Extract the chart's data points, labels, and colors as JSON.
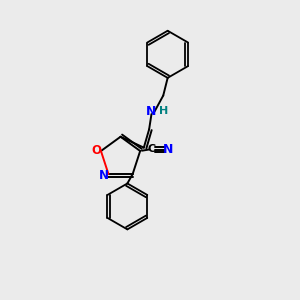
{
  "background_color": "#ebebeb",
  "bond_color": "#000000",
  "N_color": "#0000ff",
  "O_color": "#ff0000",
  "H_color": "#008080",
  "figsize": [
    3.0,
    3.0
  ],
  "dpi": 100,
  "xlim": [
    0,
    10
  ],
  "ylim": [
    0,
    10
  ]
}
